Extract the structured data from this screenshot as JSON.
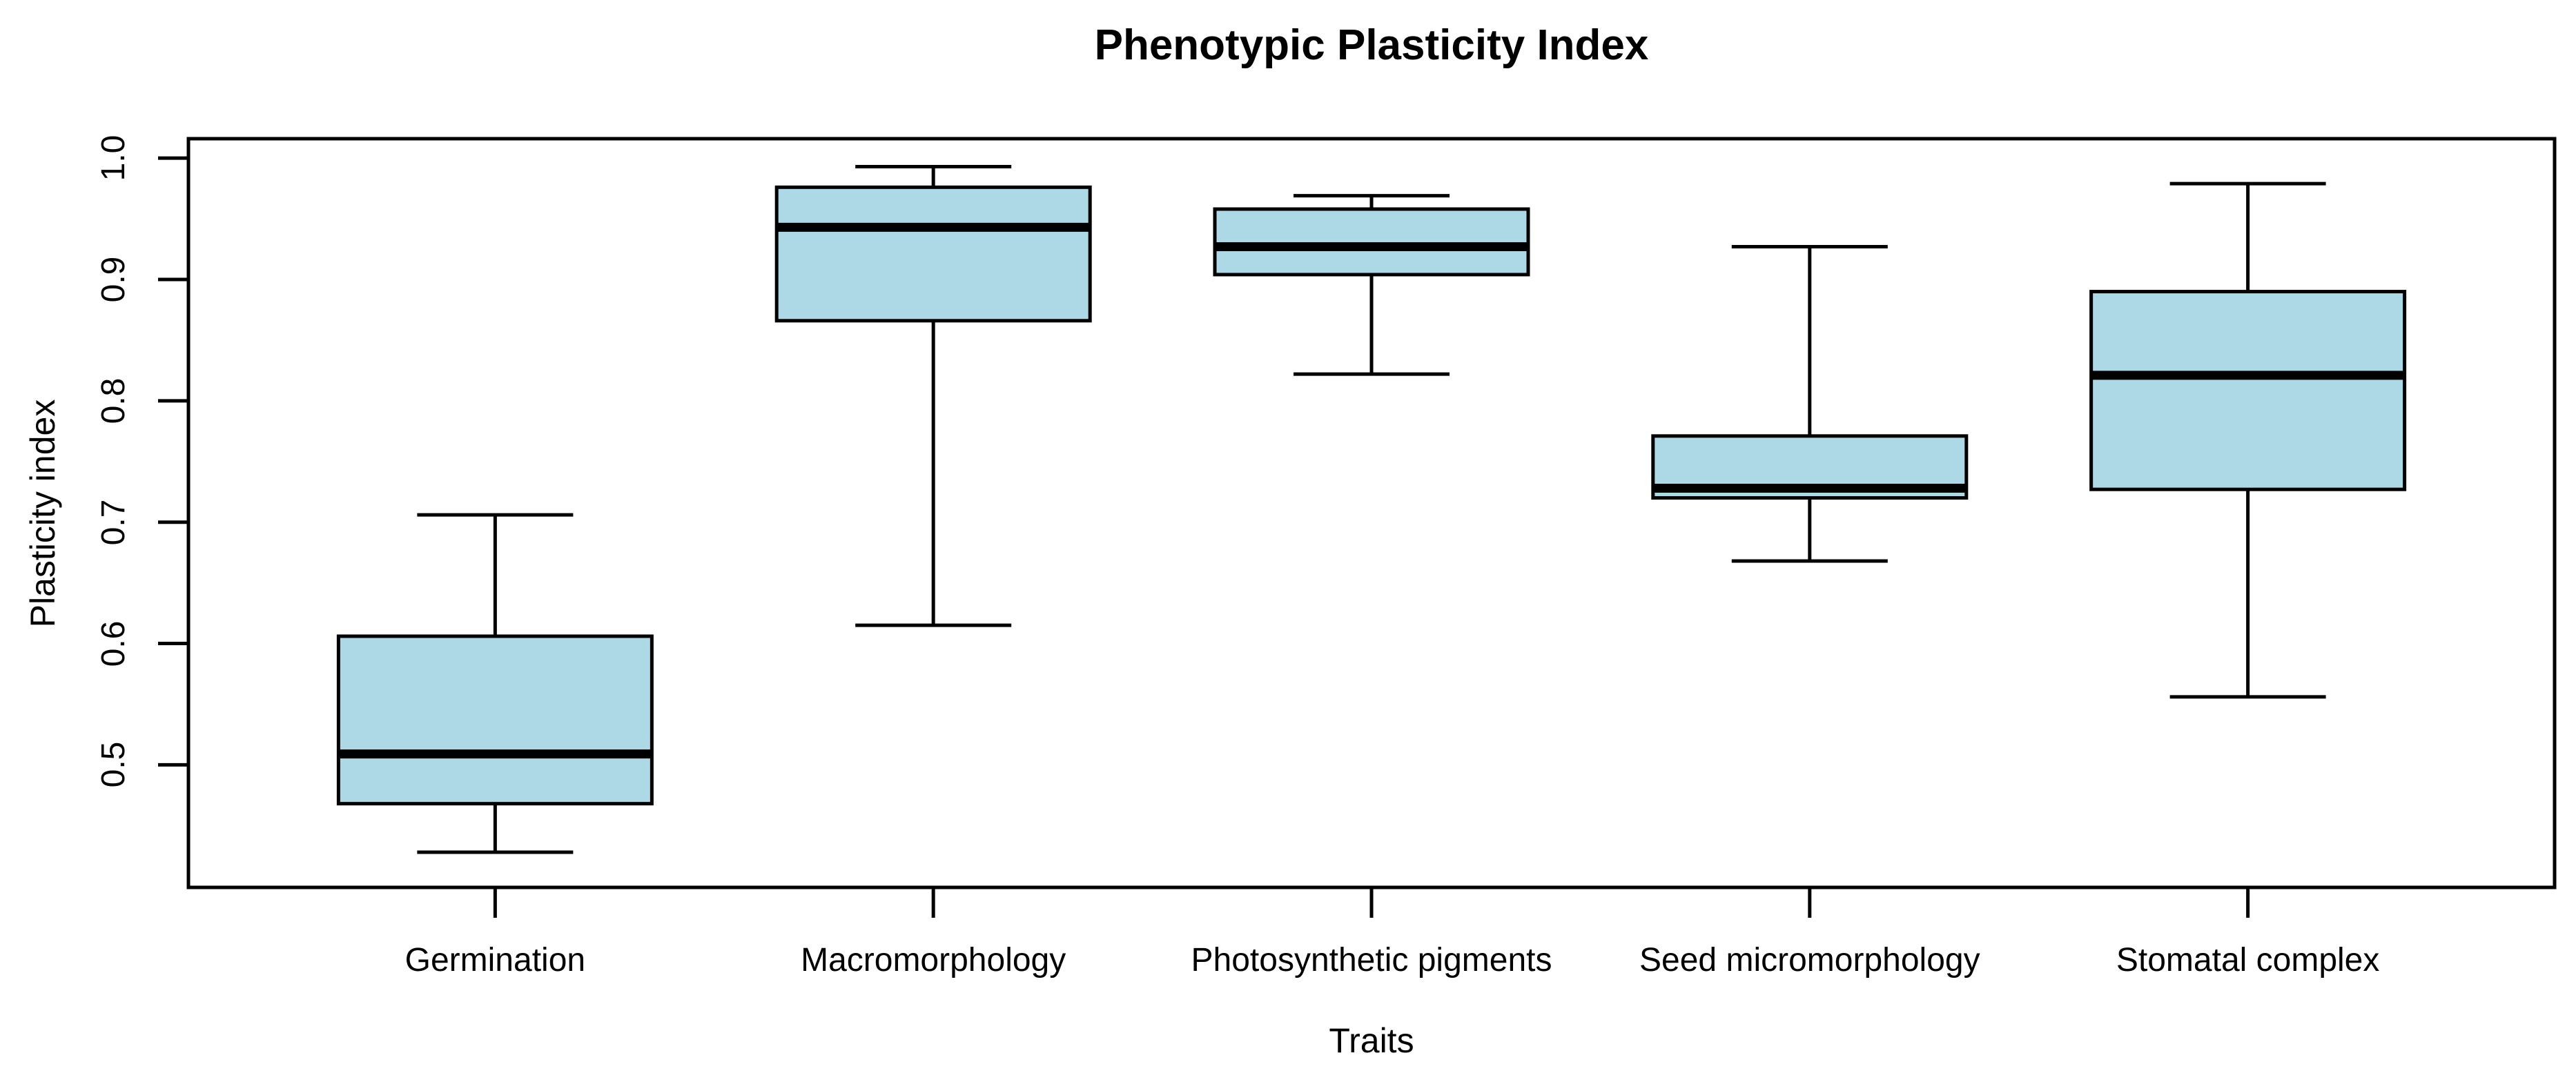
{
  "title": "Phenotypic Plasticity Index",
  "x_axis": {
    "label": "Traits"
  },
  "y_axis": {
    "label": "Plasticity index",
    "ticks": [
      {
        "label": "1.0",
        "value": 1.0
      },
      {
        "label": "0.9",
        "value": 0.9
      },
      {
        "label": "0.8",
        "value": 0.8
      },
      {
        "label": "0.7",
        "value": 0.7
      },
      {
        "label": "0.6",
        "value": 0.6
      },
      {
        "label": "0.5",
        "value": 0.5
      }
    ]
  },
  "chart_data": {
    "type": "boxplot",
    "title": "Phenotypic Plasticity Index",
    "xlabel": "Traits",
    "ylabel": "Plasticity index",
    "grid": false,
    "ylim_display": [
      0.399,
      1.016
    ],
    "y_tick_values": [
      0.5,
      0.6,
      0.7,
      0.8,
      0.9,
      1.0
    ],
    "categories": [
      "Germination",
      "Macromorphology",
      "Photosynthetic pigments",
      "Seed micromorphology",
      "Stomatal complex"
    ],
    "series": [
      {
        "name": "Germination",
        "whisker_low": 0.428,
        "q1": 0.468,
        "median": 0.509,
        "q3": 0.606,
        "whisker_high": 0.706
      },
      {
        "name": "Macromorphology",
        "whisker_low": 0.615,
        "q1": 0.866,
        "median": 0.943,
        "q3": 0.976,
        "whisker_high": 0.993
      },
      {
        "name": "Photosynthetic pigments",
        "whisker_low": 0.822,
        "q1": 0.904,
        "median": 0.927,
        "q3": 0.958,
        "whisker_high": 0.969
      },
      {
        "name": "Seed micromorphology",
        "whisker_low": 0.668,
        "q1": 0.72,
        "median": 0.728,
        "q3": 0.771,
        "whisker_high": 0.927
      },
      {
        "name": "Stomatal complex",
        "whisker_low": 0.556,
        "q1": 0.727,
        "median": 0.821,
        "q3": 0.89,
        "whisker_high": 0.979
      }
    ],
    "box_fill_color": "#ADD8E6",
    "line_color": "#000000"
  }
}
